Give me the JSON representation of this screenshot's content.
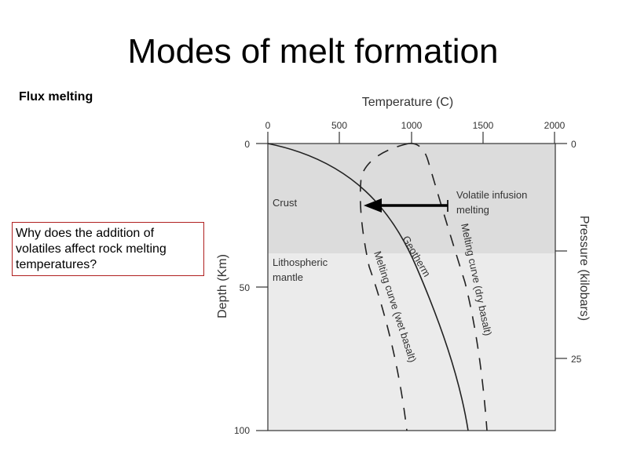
{
  "slide": {
    "title": "Modes of melt formation",
    "subtitle": "Flux melting",
    "question": "Why does the addition of volatiles affect rock melting temperatures?"
  },
  "diagram": {
    "top_axis_label": "Temperature (C)",
    "top_ticks": [
      "0",
      "500",
      "1000",
      "1500",
      "2000"
    ],
    "left_axis_label": "Depth (Km)",
    "left_ticks": [
      "0",
      "50",
      "100"
    ],
    "right_axis_label": "Pressure (kilobars)",
    "right_ticks": [
      "0",
      "25"
    ],
    "region_crust": "Crust",
    "region_mantle_line1": "Lithospheric",
    "region_mantle_line2": "mantle",
    "arrow_label_line1": "Volatile infusion",
    "arrow_label_line2": "melting",
    "geotherm_label": "Geotherm",
    "dry_curve_label": "Melting curve (dry basalt)",
    "wet_curve_label": "Melting curve (wet basalt)",
    "colors": {
      "crust_fill": "#dcdcdc",
      "mantle_fill": "#ebebeb",
      "question_border": "#b02020"
    }
  }
}
